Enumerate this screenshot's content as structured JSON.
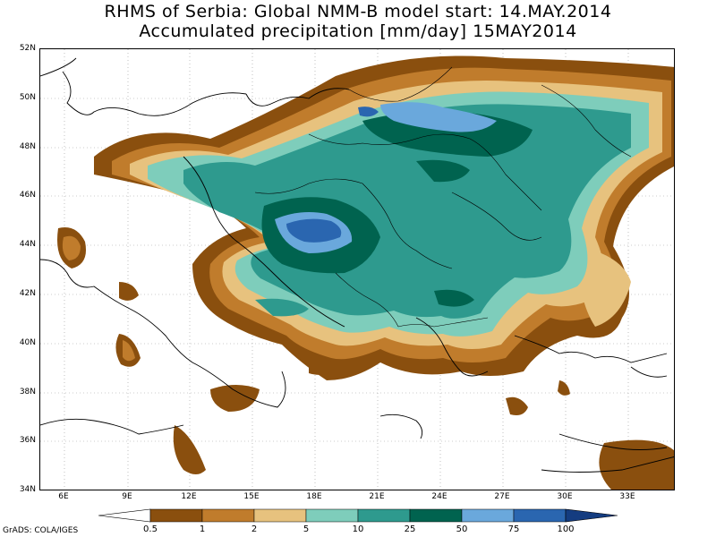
{
  "title": {
    "line1": "RHMS of Serbia: Global NMM-B model   start: 14.MAY.2014",
    "line2": "Accumulated precipitation [mm/day]  15MAY2014"
  },
  "axes": {
    "lat_labels": [
      "52N",
      "50N",
      "48N",
      "46N",
      "44N",
      "42N",
      "40N",
      "38N",
      "36N",
      "34N"
    ],
    "lon_labels": [
      "6E",
      "9E",
      "12E",
      "15E",
      "18E",
      "21E",
      "24E",
      "27E",
      "30E",
      "33E"
    ]
  },
  "legend": {
    "labels": [
      "0.5",
      "1",
      "2",
      "5",
      "10",
      "25",
      "50",
      "75",
      "100"
    ],
    "colors": [
      "#8a4f0e",
      "#c07c2c",
      "#e7c27e",
      "#7ecdbb",
      "#2e9a8e",
      "#00634f",
      "#6aa8dc",
      "#2a66b0",
      "#143c80"
    ]
  },
  "credit": "GrADS: COLA/IGES"
}
